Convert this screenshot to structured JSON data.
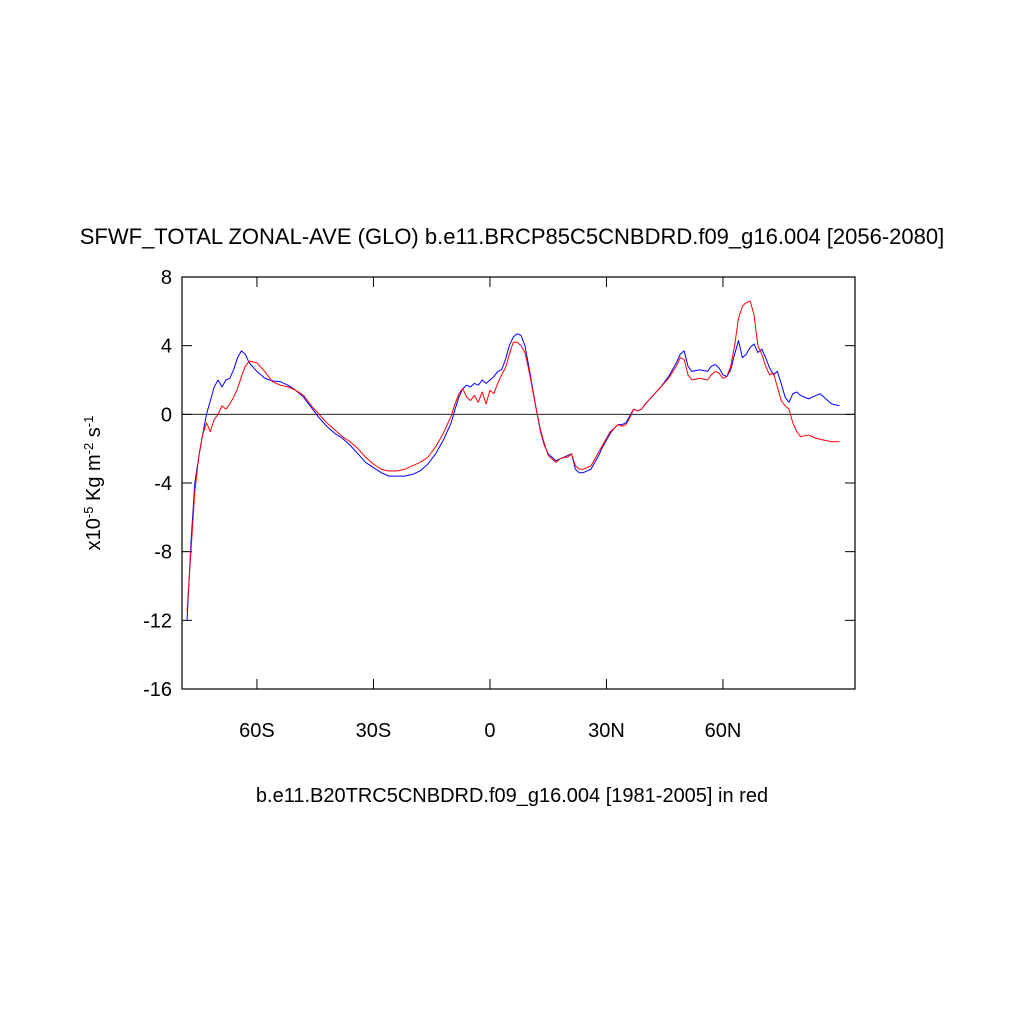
{
  "chart_data": {
    "type": "line",
    "title": "SFWF_TOTAL ZONAL-AVE (GLO) b.e11.BRCP85C5CNBDRD.f09_g16.004 [2056-2080]",
    "xlabel": "b.e11.B20TRC5CNBDRD.f09_g16.004 [1981-2005] in red",
    "ylabel": [
      {
        "text": "x10"
      },
      {
        "text": "-5",
        "sup": true
      },
      {
        "text": " Kg m"
      },
      {
        "text": "-2",
        "sup": true
      },
      {
        "text": " s"
      },
      {
        "text": "-1",
        "sup": true
      }
    ],
    "x": [
      -78,
      -77,
      -76,
      -75,
      -74,
      -73,
      -72,
      -71,
      -70,
      -69,
      -68,
      -67,
      -66,
      -65,
      -64,
      -63,
      -62,
      -60,
      -58,
      -56,
      -54,
      -52,
      -50,
      -48,
      -46,
      -44,
      -42,
      -40,
      -38,
      -36,
      -34,
      -32,
      -30,
      -28,
      -26,
      -24,
      -22,
      -20,
      -18,
      -16,
      -14,
      -12,
      -10,
      -9,
      -8,
      -7,
      -6,
      -5,
      -4,
      -3,
      -2,
      -1,
      0,
      1,
      2,
      3,
      4,
      5,
      6,
      7,
      8,
      9,
      10,
      11,
      12,
      13,
      14,
      15,
      16,
      17,
      18,
      19,
      20,
      21,
      22,
      23,
      24,
      25,
      26,
      27,
      28,
      29,
      30,
      31,
      32,
      33,
      34,
      35,
      36,
      37,
      38,
      39,
      40,
      42,
      44,
      46,
      48,
      49,
      50,
      51,
      52,
      54,
      56,
      57,
      58,
      59,
      60,
      61,
      62,
      63,
      64,
      65,
      66,
      67,
      68,
      69,
      70,
      71,
      72,
      73,
      74,
      75,
      76,
      77,
      78,
      79,
      80,
      82,
      84,
      85,
      86,
      88,
      90
    ],
    "series": [
      {
        "color": "#0000ff",
        "values": [
          -12,
          -7.5,
          -4,
          -2.5,
          -1.2,
          0,
          0.8,
          1.6,
          2.0,
          1.6,
          2.0,
          2.1,
          2.6,
          3.3,
          3.7,
          3.5,
          3.0,
          2.5,
          2.1,
          1.95,
          1.9,
          1.7,
          1.4,
          1.0,
          0.4,
          -0.2,
          -0.7,
          -1.1,
          -1.4,
          -1.8,
          -2.3,
          -2.8,
          -3.1,
          -3.4,
          -3.6,
          -3.6,
          -3.6,
          -3.5,
          -3.3,
          -2.9,
          -2.3,
          -1.5,
          -0.5,
          0.3,
          1.0,
          1.5,
          1.7,
          1.6,
          1.8,
          1.7,
          2.0,
          1.8,
          2.0,
          2.2,
          2.5,
          2.6,
          3.2,
          4.0,
          4.5,
          4.7,
          4.6,
          4.0,
          2.8,
          1.5,
          0.2,
          -1.0,
          -1.8,
          -2.3,
          -2.5,
          -2.7,
          -2.6,
          -2.5,
          -2.4,
          -2.3,
          -3.2,
          -3.4,
          -3.4,
          -3.3,
          -3.2,
          -2.8,
          -2.4,
          -1.9,
          -1.5,
          -1.1,
          -0.8,
          -0.6,
          -0.6,
          -0.5,
          -0.1,
          0.3,
          0.2,
          0.3,
          0.6,
          1.1,
          1.6,
          2.2,
          3.0,
          3.5,
          3.7,
          2.8,
          2.5,
          2.6,
          2.5,
          2.8,
          2.9,
          2.7,
          2.3,
          2.2,
          2.6,
          3.5,
          4.3,
          3.3,
          3.5,
          3.9,
          4.1,
          3.6,
          3.8,
          3.3,
          2.7,
          2.3,
          2.5,
          1.8,
          1.0,
          0.7,
          1.2,
          1.3,
          1.1,
          0.9,
          1.1,
          1.2,
          1.0,
          0.6,
          0.5
        ]
      },
      {
        "color": "#ff0000",
        "values": [
          -11.5,
          -8,
          -4.5,
          -2.5,
          -1.2,
          -0.5,
          -1.0,
          -0.3,
          0.0,
          0.5,
          0.3,
          0.6,
          1.0,
          1.5,
          2.2,
          2.8,
          3.1,
          3.0,
          2.5,
          1.9,
          1.7,
          1.6,
          1.4,
          1.1,
          0.5,
          0.0,
          -0.5,
          -0.9,
          -1.3,
          -1.6,
          -2.0,
          -2.5,
          -2.9,
          -3.2,
          -3.3,
          -3.3,
          -3.2,
          -3.0,
          -2.8,
          -2.5,
          -1.9,
          -1.1,
          -0.1,
          0.6,
          1.2,
          1.5,
          1.0,
          0.8,
          1.1,
          0.7,
          1.3,
          0.6,
          1.4,
          1.2,
          1.8,
          2.3,
          2.7,
          3.5,
          4.2,
          4.2,
          4.0,
          3.6,
          2.6,
          1.4,
          0.2,
          -0.9,
          -1.7,
          -2.4,
          -2.6,
          -2.8,
          -2.6,
          -2.5,
          -2.5,
          -2.3,
          -3.0,
          -3.2,
          -3.2,
          -3.1,
          -3.0,
          -2.6,
          -2.2,
          -1.8,
          -1.4,
          -1.0,
          -0.8,
          -0.6,
          -0.7,
          -0.6,
          -0.2,
          0.3,
          0.2,
          0.3,
          0.6,
          1.1,
          1.6,
          2.1,
          2.8,
          3.3,
          3.2,
          2.3,
          2.0,
          2.1,
          2.0,
          2.3,
          2.5,
          2.4,
          2.1,
          2.2,
          2.8,
          4.0,
          5.6,
          6.3,
          6.5,
          6.6,
          5.8,
          4.0,
          3.5,
          2.8,
          2.3,
          2.4,
          1.6,
          0.8,
          0.5,
          0.3,
          -0.5,
          -1.0,
          -1.3,
          -1.2,
          -1.4,
          -1.45,
          -1.5,
          -1.6,
          -1.6
        ]
      }
    ],
    "xlim": [
      -79.3,
      94
    ],
    "xticks": [
      {
        "value": -60,
        "label": "60S"
      },
      {
        "value": -30,
        "label": "30S"
      },
      0,
      {
        "value": 30,
        "label": "30N"
      },
      {
        "value": 60,
        "label": "60N"
      }
    ],
    "ylim": [
      -16,
      8
    ],
    "yticks": [
      -16,
      -12,
      -8,
      -4,
      0,
      4,
      8
    ],
    "ref_line": 0
  }
}
